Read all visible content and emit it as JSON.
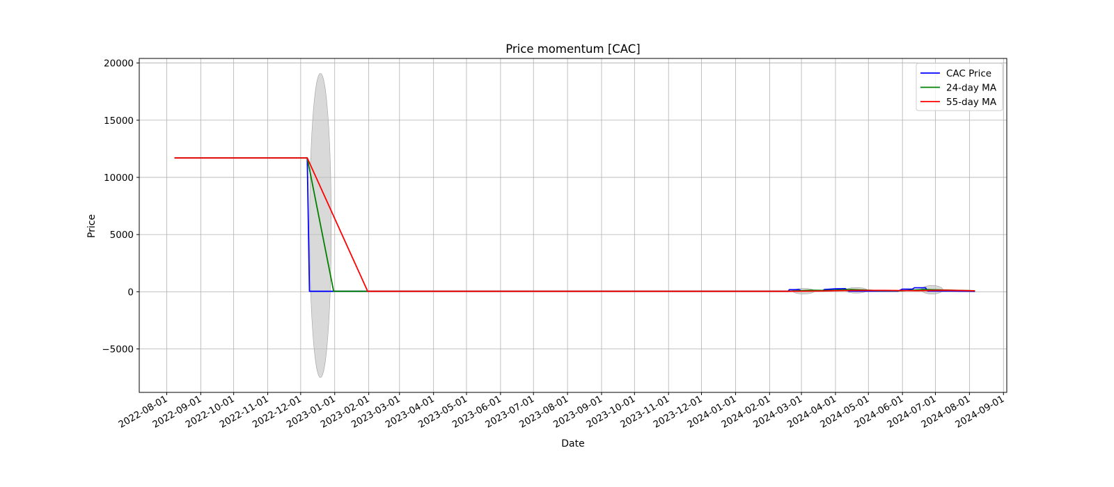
{
  "chart_data": {
    "type": "line",
    "title": "Price momentum [CAC]",
    "xlabel": "Date",
    "ylabel": "Price",
    "grid": true,
    "legend_position": "top-right",
    "x_axis_type": "date",
    "xlim": [
      "2022-07-07",
      "2024-09-04"
    ],
    "ylim": [
      -8800,
      20400
    ],
    "y_ticks": [
      -5000,
      0,
      5000,
      10000,
      15000,
      20000
    ],
    "y_tick_labels": [
      "−5000",
      "0",
      "5000",
      "10000",
      "15000",
      "20000"
    ],
    "x_ticks": [
      "2022-08-01",
      "2022-09-01",
      "2022-10-01",
      "2022-11-01",
      "2022-12-01",
      "2023-01-01",
      "2023-02-01",
      "2023-03-01",
      "2023-04-01",
      "2023-05-01",
      "2023-06-01",
      "2023-07-01",
      "2023-08-01",
      "2023-09-01",
      "2023-10-01",
      "2023-11-01",
      "2023-12-01",
      "2024-01-01",
      "2024-02-01",
      "2024-03-01",
      "2024-04-01",
      "2024-05-01",
      "2024-06-01",
      "2024-07-01",
      "2024-08-01",
      "2024-09-01"
    ],
    "series": [
      {
        "name": "CAC Price",
        "color": "#0000ff",
        "points": [
          [
            "2022-08-08",
            11700
          ],
          [
            "2022-12-07",
            11700
          ],
          [
            "2022-12-09",
            40
          ],
          [
            "2023-12-31",
            40
          ],
          [
            "2024-02-18",
            40
          ],
          [
            "2024-02-19",
            180
          ],
          [
            "2024-02-28",
            180
          ],
          [
            "2024-03-01",
            80
          ],
          [
            "2024-03-20",
            80
          ],
          [
            "2024-03-22",
            200
          ],
          [
            "2024-04-01",
            250
          ],
          [
            "2024-04-10",
            270
          ],
          [
            "2024-04-13",
            50
          ],
          [
            "2024-05-28",
            50
          ],
          [
            "2024-06-01",
            230
          ],
          [
            "2024-06-10",
            230
          ],
          [
            "2024-06-12",
            350
          ],
          [
            "2024-06-22",
            350
          ],
          [
            "2024-06-24",
            60
          ],
          [
            "2024-07-15",
            60
          ],
          [
            "2024-08-06",
            30
          ]
        ]
      },
      {
        "name": "24-day MA",
        "color": "#008000",
        "points": [
          [
            "2022-08-08",
            11700
          ],
          [
            "2022-12-07",
            11700
          ],
          [
            "2022-12-31",
            40
          ],
          [
            "2024-02-18",
            40
          ],
          [
            "2024-03-10",
            130
          ],
          [
            "2024-03-25",
            110
          ],
          [
            "2024-04-15",
            200
          ],
          [
            "2024-05-10",
            100
          ],
          [
            "2024-06-01",
            80
          ],
          [
            "2024-06-20",
            200
          ],
          [
            "2024-07-10",
            150
          ],
          [
            "2024-08-06",
            80
          ]
        ]
      },
      {
        "name": "55-day MA",
        "color": "#ff0000",
        "points": [
          [
            "2022-08-08",
            11700
          ],
          [
            "2022-12-07",
            11700
          ],
          [
            "2023-01-31",
            40
          ],
          [
            "2024-02-18",
            40
          ],
          [
            "2024-03-15",
            60
          ],
          [
            "2024-04-15",
            110
          ],
          [
            "2024-05-15",
            120
          ],
          [
            "2024-06-15",
            90
          ],
          [
            "2024-07-10",
            130
          ],
          [
            "2024-08-06",
            90
          ]
        ]
      }
    ],
    "bands": [
      {
        "center": "2022-12-19",
        "y_low": -7500,
        "y_high": 19100
      },
      {
        "center": "2024-03-03",
        "y_low": -100,
        "y_high": 200
      },
      {
        "center": "2024-04-20",
        "y_low": -100,
        "y_high": 350
      },
      {
        "center": "2024-06-28",
        "y_low": -200,
        "y_high": 550
      }
    ]
  }
}
